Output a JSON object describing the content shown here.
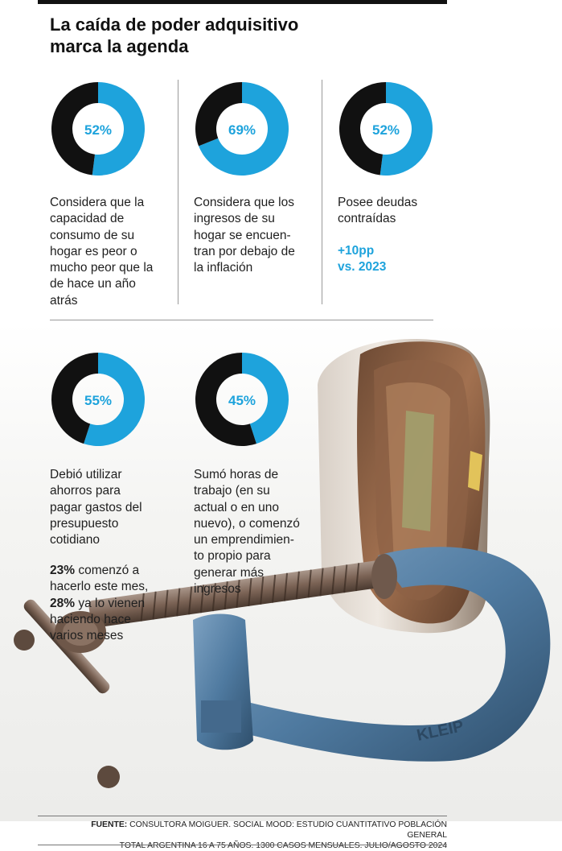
{
  "title": [
    "La caída de poder adquisitivo",
    "marca la agenda"
  ],
  "colors": {
    "accent": "#1ea3dc",
    "dark": "#111111"
  },
  "chart_data": [
    {
      "type": "pie",
      "variant": "donut",
      "value": 52,
      "label": "52%",
      "description": [
        "Considera que la",
        "capacidad de",
        "consumo de su",
        "hogar es peor o",
        "mucho peor que la",
        "de hace un año",
        "atrás"
      ]
    },
    {
      "type": "pie",
      "variant": "donut",
      "value": 69,
      "label": "69%",
      "description": [
        "Considera que los",
        "ingresos de su",
        "hogar se encuen-",
        "tran por debajo de",
        "la inflación"
      ]
    },
    {
      "type": "pie",
      "variant": "donut",
      "value": 52,
      "label": "52%",
      "description": [
        "Posee deudas",
        "contraídas"
      ],
      "highlight": [
        "+10pp",
        "vs. 2023"
      ]
    },
    {
      "type": "pie",
      "variant": "donut",
      "value": 55,
      "label": "55%",
      "description": [
        "Debió utilizar",
        "ahorros para",
        "pagar gastos del",
        "presupuesto",
        "cotidiano"
      ]
    },
    {
      "type": "pie",
      "variant": "donut",
      "value": 45,
      "label": "45%",
      "description": [
        "Sumó horas de",
        "trabajo (en su",
        "actual o en uno",
        "nuevo), o comenzó",
        "un emprendimien-",
        "to propio para",
        "generar más",
        "ingresos"
      ]
    }
  ],
  "note": {
    "lines": [
      {
        "bold": "23%",
        "text": " comenzó a"
      },
      {
        "bold": "",
        "text": "hacerlo este mes,"
      },
      {
        "bold": "28%",
        "text": " ya lo vienen"
      },
      {
        "bold": "",
        "text": "haciendo hace"
      },
      {
        "bold": "",
        "text": "varios meses"
      }
    ]
  },
  "clamp_text": "KLEIP",
  "source": {
    "label": "FUENTE:",
    "line1": " CONSULTORA MOIGUER. SOCIAL MOOD: ESTUDIO CUANTITATIVO POBLACIÓN GENERAL",
    "line2": "TOTAL ARGENTINA 16 A 75 AÑOS. 1300 CASOS MENSUALES. JULIO/AGOSTO 2024"
  }
}
